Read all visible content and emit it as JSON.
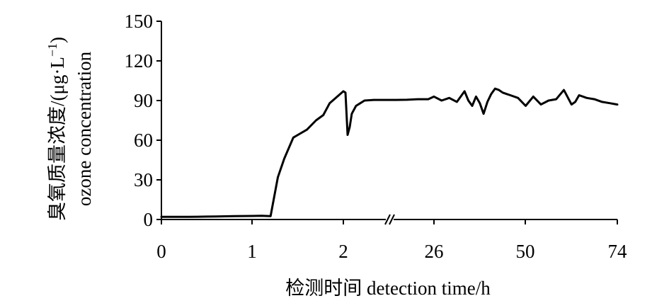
{
  "chart_data": {
    "type": "line",
    "title": "",
    "xlabel": "检测时间 detection time/h",
    "ylabel": {
      "line1_cn": "臭氧质量浓度/(μg·L",
      "line1_sup": "−1",
      "line1_close": ")",
      "line2_en": "ozone concentration"
    },
    "ylim": [
      0,
      150
    ],
    "yticks": [
      "0",
      "30",
      "60",
      "90",
      "120",
      "150"
    ],
    "xticks": [
      "0",
      "1",
      "2",
      "26",
      "50",
      "74"
    ],
    "axis_break": "between 2 and 26 h",
    "grid": false,
    "legend": "none",
    "line_color": "#000000",
    "series": [
      {
        "x": [
          0,
          0.1,
          0.2,
          0.3,
          0.4,
          0.5,
          0.6,
          0.7,
          0.8,
          0.9,
          1.0,
          1.1,
          1.2,
          1.28,
          1.35,
          1.45,
          1.5,
          1.6,
          1.7,
          1.78,
          1.85,
          1.95,
          2.0,
          2.05,
          2.1,
          2.15,
          2.2,
          2.3,
          2.5,
          2.72
        ],
        "y": [
          2,
          2,
          2,
          2,
          2.1,
          2.2,
          2.3,
          2.4,
          2.5,
          2.6,
          2.7,
          2.8,
          2.5,
          32,
          46,
          62,
          64,
          68,
          75,
          79,
          88,
          94,
          97,
          96,
          64,
          70,
          80,
          86,
          90,
          90.5
        ]
      },
      {
        "x": [
          26,
          28,
          30,
          32,
          34,
          35,
          36,
          37,
          38,
          39,
          40,
          41,
          42,
          43,
          44,
          45,
          46,
          48,
          50,
          52,
          54,
          56,
          58,
          60,
          62,
          63,
          64,
          66,
          68,
          70,
          72,
          74
        ],
        "y": [
          93,
          90,
          92,
          89,
          97,
          90,
          86,
          93,
          88,
          80,
          89,
          95,
          99,
          98,
          96,
          95,
          94,
          92,
          86,
          93,
          87,
          90,
          91,
          98,
          87,
          89,
          94,
          92,
          91,
          89,
          88,
          87
        ]
      }
    ]
  }
}
